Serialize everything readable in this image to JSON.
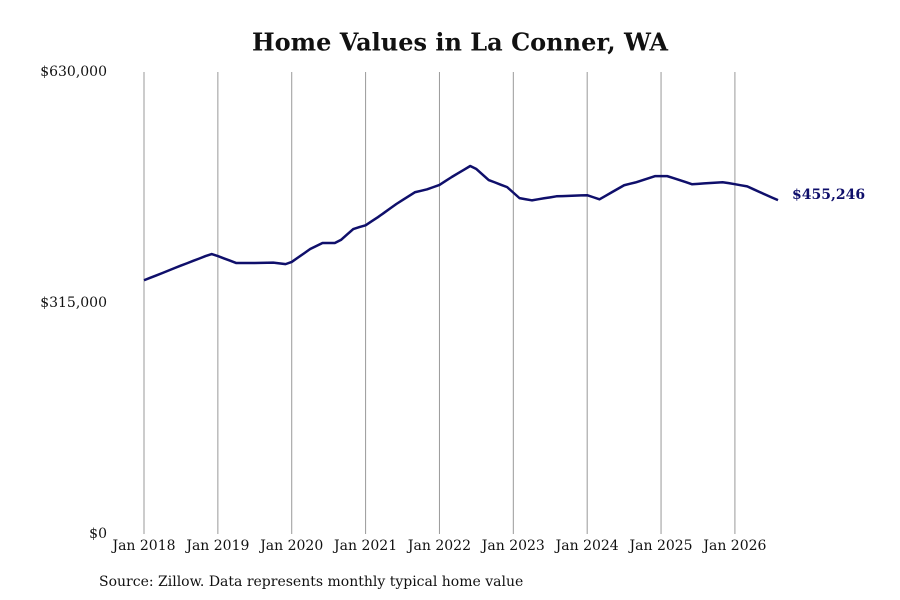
{
  "chart_data": {
    "type": "line",
    "title": "Home Values in La Conner, WA",
    "source": "Source: Zillow. Data represents monthly typical home value",
    "color": "#0f0f6b",
    "grid": "vertical",
    "x": [
      "2018-01",
      "2018-02",
      "2018-03",
      "2018-04",
      "2018-05",
      "2018-06",
      "2018-07",
      "2018-08",
      "2018-09",
      "2018-10",
      "2018-11",
      "2018-12",
      "2019-01",
      "2019-02",
      "2019-03",
      "2019-04",
      "2019-05",
      "2019-06",
      "2019-07",
      "2019-08",
      "2019-09",
      "2019-10",
      "2019-11",
      "2019-12",
      "2020-01",
      "2020-02",
      "2020-03",
      "2020-04",
      "2020-05",
      "2020-06",
      "2020-07",
      "2020-08",
      "2020-09",
      "2020-10",
      "2020-11",
      "2020-12",
      "2021-01",
      "2021-02",
      "2021-03",
      "2021-04",
      "2021-05",
      "2021-06",
      "2021-07",
      "2021-08",
      "2021-09",
      "2021-10",
      "2021-11",
      "2021-12",
      "2022-01",
      "2022-02",
      "2022-03",
      "2022-04",
      "2022-05",
      "2022-06",
      "2022-07",
      "2022-08",
      "2022-09",
      "2022-10",
      "2022-11",
      "2022-12",
      "2023-01",
      "2023-02",
      "2023-03",
      "2023-04",
      "2023-05",
      "2023-06",
      "2023-07",
      "2023-08",
      "2023-09",
      "2023-10",
      "2023-11",
      "2023-12",
      "2024-01",
      "2024-02",
      "2024-03",
      "2024-04",
      "2024-05",
      "2024-06",
      "2024-07",
      "2024-08",
      "2024-09",
      "2024-10",
      "2024-11",
      "2024-12",
      "2025-01",
      "2025-02",
      "2025-03",
      "2025-04",
      "2025-05",
      "2025-06",
      "2025-07",
      "2025-08",
      "2025-09",
      "2025-10",
      "2025-11",
      "2025-12",
      "2026-01",
      "2026-02",
      "2026-03",
      "2026-04",
      "2026-05",
      "2026-06",
      "2026-07",
      "2026-08"
    ],
    "values": [
      346000,
      349300,
      352600,
      355900,
      359300,
      362700,
      366000,
      369200,
      372500,
      375700,
      379000,
      381800,
      379000,
      375800,
      372700,
      369500,
      369500,
      369500,
      369500,
      369700,
      369800,
      370000,
      369000,
      368000,
      371000,
      376900,
      382700,
      388600,
      392700,
      396800,
      396800,
      396800,
      401000,
      408500,
      415900,
      418500,
      421000,
      426500,
      432000,
      438000,
      444000,
      450000,
      455300,
      460700,
      466000,
      468000,
      470000,
      473000,
      476000,
      481400,
      486800,
      491800,
      496800,
      501800,
      497700,
      490200,
      482700,
      479500,
      476200,
      473000,
      465500,
      458000,
      456500,
      455000,
      456400,
      457800,
      459100,
      460500,
      460800,
      461100,
      461400,
      461700,
      462000,
      459200,
      456400,
      461200,
      466000,
      470800,
      475600,
      477700,
      479700,
      482500,
      485200,
      488000,
      488000,
      488000,
      485400,
      482700,
      479900,
      477000,
      477500,
      478100,
      478600,
      479200,
      479700,
      478400,
      477000,
      475500,
      474000,
      470200,
      466400,
      462600,
      458900,
      455246
    ],
    "value_labels": [
      null,
      null,
      null,
      null,
      null,
      null,
      null,
      null,
      null,
      null,
      null,
      null,
      null,
      null,
      null,
      null,
      null,
      null,
      null,
      null,
      null,
      null,
      null,
      null,
      null,
      null,
      null,
      null,
      null,
      null,
      null,
      null,
      null,
      null,
      null,
      null,
      null,
      null,
      null,
      null,
      null,
      null,
      null,
      null,
      null,
      null,
      null,
      null,
      null,
      null,
      null,
      null,
      null,
      null,
      null,
      null,
      null,
      null,
      null,
      null,
      null,
      null,
      null,
      null,
      null,
      null,
      null,
      null,
      null,
      null,
      null,
      null,
      null,
      null,
      null,
      null,
      null,
      null,
      null,
      null,
      null,
      null,
      null,
      null,
      null,
      null,
      null,
      null,
      null,
      null,
      null,
      null,
      null,
      null,
      null,
      null,
      null,
      null,
      null,
      null,
      null,
      null,
      null,
      "$455,246"
    ],
    "xlim": [
      "2018-01",
      "2026-08"
    ],
    "xticks": [
      {
        "value": "2018-01",
        "label": "Jan 2018"
      },
      {
        "value": "2019-01",
        "label": "Jan 2019"
      },
      {
        "value": "2020-01",
        "label": "Jan 2020"
      },
      {
        "value": "2021-01",
        "label": "Jan 2021"
      },
      {
        "value": "2022-01",
        "label": "Jan 2022"
      },
      {
        "value": "2023-01",
        "label": "Jan 2023"
      },
      {
        "value": "2024-01",
        "label": "Jan 2024"
      },
      {
        "value": "2025-01",
        "label": "Jan 2025"
      },
      {
        "value": "2026-01",
        "label": "Jan 2026"
      }
    ],
    "ylim": [
      0,
      630000
    ],
    "yticks": [
      {
        "value": 0,
        "label": "$0"
      },
      {
        "value": 315000,
        "label": "$315,000"
      },
      {
        "value": 630000,
        "label": "$630,000"
      }
    ]
  }
}
